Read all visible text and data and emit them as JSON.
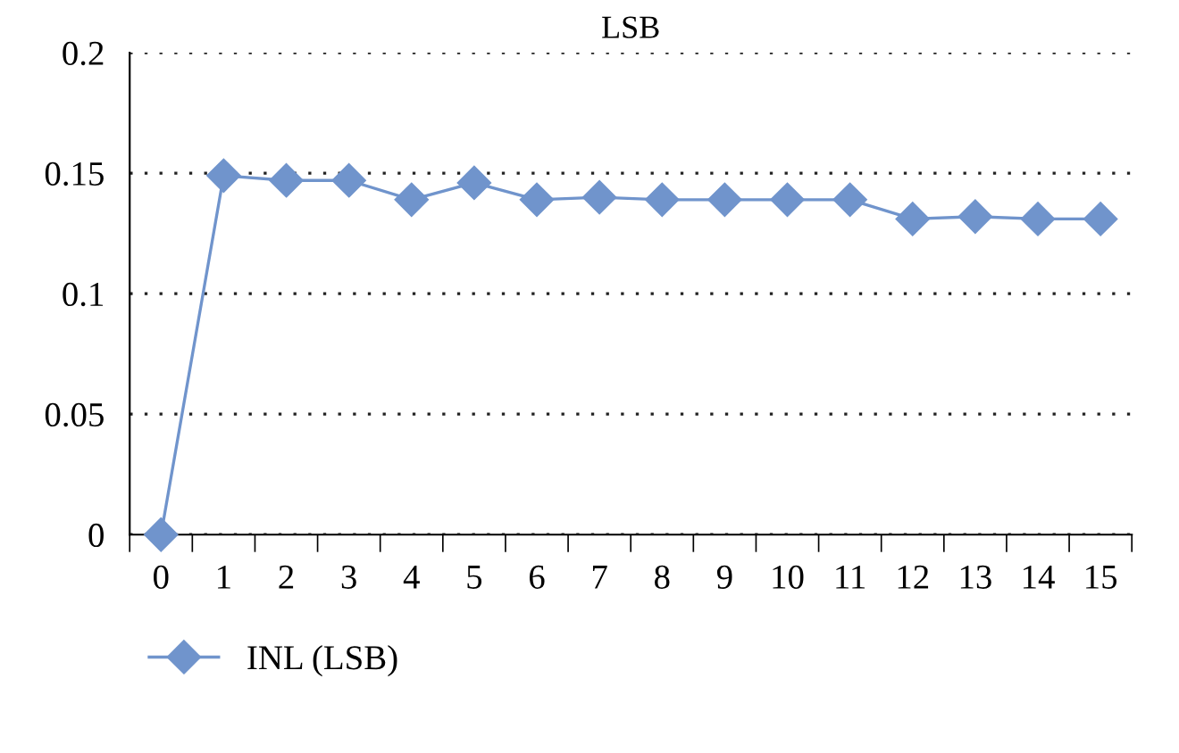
{
  "chart_data": {
    "type": "line",
    "title": "LSB",
    "categories": [
      "0",
      "1",
      "2",
      "3",
      "4",
      "5",
      "6",
      "7",
      "8",
      "9",
      "10",
      "11",
      "12",
      "13",
      "14",
      "15"
    ],
    "series": [
      {
        "name": "INL (LSB)",
        "color": "#7094cc",
        "values": [
          0,
          0.149,
          0.147,
          0.147,
          0.139,
          0.146,
          0.139,
          0.14,
          0.139,
          0.139,
          0.139,
          0.139,
          0.131,
          0.132,
          0.131,
          0.131
        ]
      }
    ],
    "ylim": [
      0,
      0.2
    ],
    "yticks": [
      0,
      0.05,
      0.1,
      0.15,
      0.2
    ],
    "grid": "y",
    "legend": "bottom left",
    "marker": "diamond",
    "line_style": "solid"
  }
}
